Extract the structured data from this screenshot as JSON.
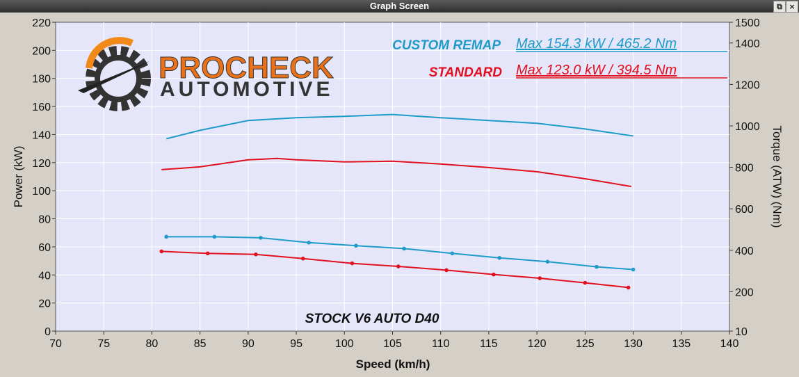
{
  "window": {
    "title": "Graph Screen",
    "restore_icon": "restore-icon",
    "close_icon": "close-icon"
  },
  "logo": {
    "brand_line1": "PROCHECK",
    "brand_line2": "AUTOMOTIVE",
    "icon": "gear-speedometer-logo"
  },
  "legend": [
    {
      "label": "CUSTOM REMAP",
      "max": "Max 154.3 kW  / 465.2 Nm",
      "color": "#1f9bc7"
    },
    {
      "label": "STANDARD",
      "max": "Max 123.0 kW  / 394.5 Nm",
      "color": "#e0101e"
    }
  ],
  "chart_data": {
    "type": "line",
    "annotation": "STOCK V6 AUTO D40",
    "xlabel": "Speed (km/h)",
    "ylabel": "Power (kW)",
    "y2label": "Torque (ATW) (Nm)",
    "xlim": [
      70,
      140
    ],
    "ylim": [
      0,
      220
    ],
    "y2lim": [
      10,
      1500
    ],
    "x_ticks": [
      70,
      75,
      80,
      85,
      90,
      95,
      100,
      105,
      110,
      115,
      120,
      125,
      130,
      135,
      140
    ],
    "y_ticks": [
      0,
      20,
      40,
      60,
      80,
      100,
      120,
      140,
      160,
      180,
      200,
      220
    ],
    "y2_ticks": [
      10,
      200,
      400,
      600,
      800,
      1000,
      1200,
      1400,
      1500
    ],
    "grid": true,
    "series": [
      {
        "name": "CUSTOM REMAP",
        "quantity": "power",
        "axis": "left",
        "color": "#1f9bc7",
        "x": [
          81.5,
          85,
          90,
          95,
          100,
          105,
          110,
          115,
          120,
          125,
          130
        ],
        "y": [
          137,
          143,
          150,
          152,
          153,
          154.3,
          152,
          150,
          148,
          144,
          139
        ]
      },
      {
        "name": "STANDARD",
        "quantity": "power",
        "axis": "left",
        "color": "#e0101e",
        "x": [
          81,
          85,
          90,
          93,
          95,
          100,
          105,
          110,
          115,
          120,
          125,
          129.8
        ],
        "y": [
          115,
          117,
          122,
          123,
          122,
          120.5,
          121,
          119,
          116.5,
          113.5,
          108.5,
          103
        ]
      },
      {
        "name": "CUSTOM REMAP",
        "quantity": "torque",
        "axis": "right",
        "color": "#1f9bc7",
        "markers": true,
        "x": [
          81.5,
          86.5,
          91.3,
          96.3,
          101.2,
          106.2,
          111.2,
          116.1,
          121.1,
          126.2,
          130
        ],
        "y": [
          465.2,
          465,
          460,
          437,
          422,
          408,
          385,
          363,
          345,
          320,
          307
        ]
      },
      {
        "name": "STANDARD",
        "quantity": "torque",
        "axis": "right",
        "color": "#e0101e",
        "markers": true,
        "x": [
          81,
          85.8,
          90.8,
          95.7,
          100.8,
          105.6,
          110.6,
          115.5,
          120.3,
          125,
          129.5
        ],
        "y": [
          394.5,
          385,
          380,
          360,
          337,
          322,
          304,
          283,
          265,
          243,
          220
        ]
      }
    ]
  }
}
